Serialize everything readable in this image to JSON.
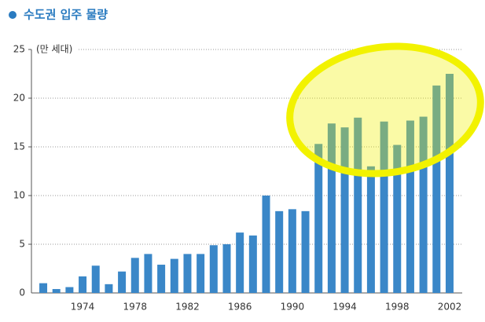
{
  "chart_data": {
    "type": "bar",
    "title": "수도권 입주 물량",
    "y_label": "(만 세대)",
    "categories": [
      null,
      null,
      null,
      "1974",
      null,
      null,
      null,
      "1978",
      null,
      null,
      null,
      "1982",
      null,
      null,
      null,
      "1986",
      null,
      null,
      null,
      "1990",
      null,
      null,
      null,
      "1994",
      null,
      null,
      null,
      "1998",
      null,
      null,
      null,
      "2002"
    ],
    "values": [
      1.0,
      0.4,
      0.6,
      1.7,
      2.8,
      0.9,
      2.2,
      3.6,
      4.0,
      2.9,
      3.5,
      4.0,
      4.0,
      4.9,
      5.0,
      6.2,
      5.9,
      10.0,
      8.4,
      8.6,
      8.4,
      15.3,
      17.4,
      17.0,
      18.0,
      13.0,
      17.6,
      15.2,
      17.7,
      18.1,
      21.3,
      22.5
    ],
    "color": "#3a87c8",
    "ylim": [
      0,
      25
    ],
    "yticks": [
      0,
      5,
      10,
      15,
      20,
      25
    ],
    "grid": true
  }
}
